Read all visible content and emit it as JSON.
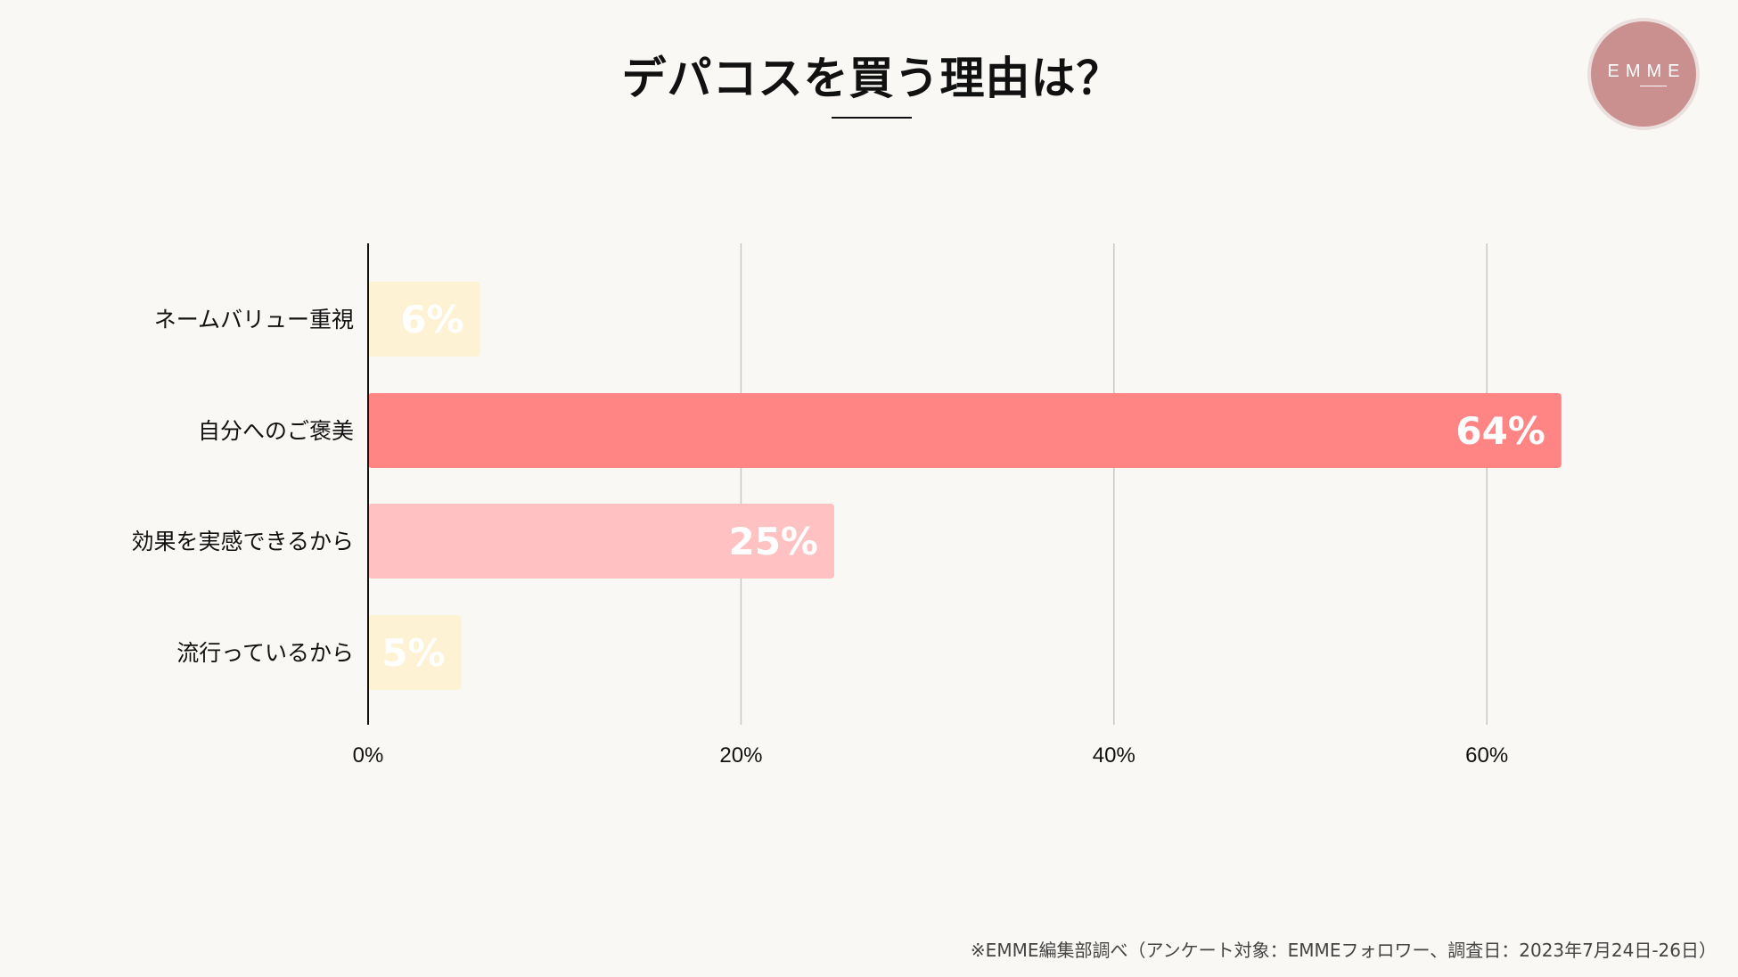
{
  "header": {
    "title": "デパコスを買う理由は？"
  },
  "logo": {
    "text": "EMME"
  },
  "chart_data": {
    "type": "bar",
    "orientation": "horizontal",
    "title": "デパコスを買う理由は？",
    "categories": [
      "ネームバリュー重視",
      "自分へのご褒美",
      "効果を実感できるから",
      "流行っているから"
    ],
    "values": [
      6,
      64,
      25,
      5
    ],
    "value_labels": [
      "6%",
      "64%",
      "25%",
      "5%"
    ],
    "bar_colors": [
      "#fdf2d3",
      "#ff8585",
      "#ffc1c1",
      "#fdf2d3"
    ],
    "x_ticks": [
      0,
      20,
      40,
      60
    ],
    "x_tick_labels": [
      "0%",
      "20%",
      "40%",
      "60%"
    ],
    "xlim": [
      0,
      70
    ],
    "grid": true,
    "xlabel": "",
    "ylabel": ""
  },
  "footnote": "※EMME編集部調べ（アンケート対象：EMMEフォロワー、調査日：2023年7月24日-26日）"
}
